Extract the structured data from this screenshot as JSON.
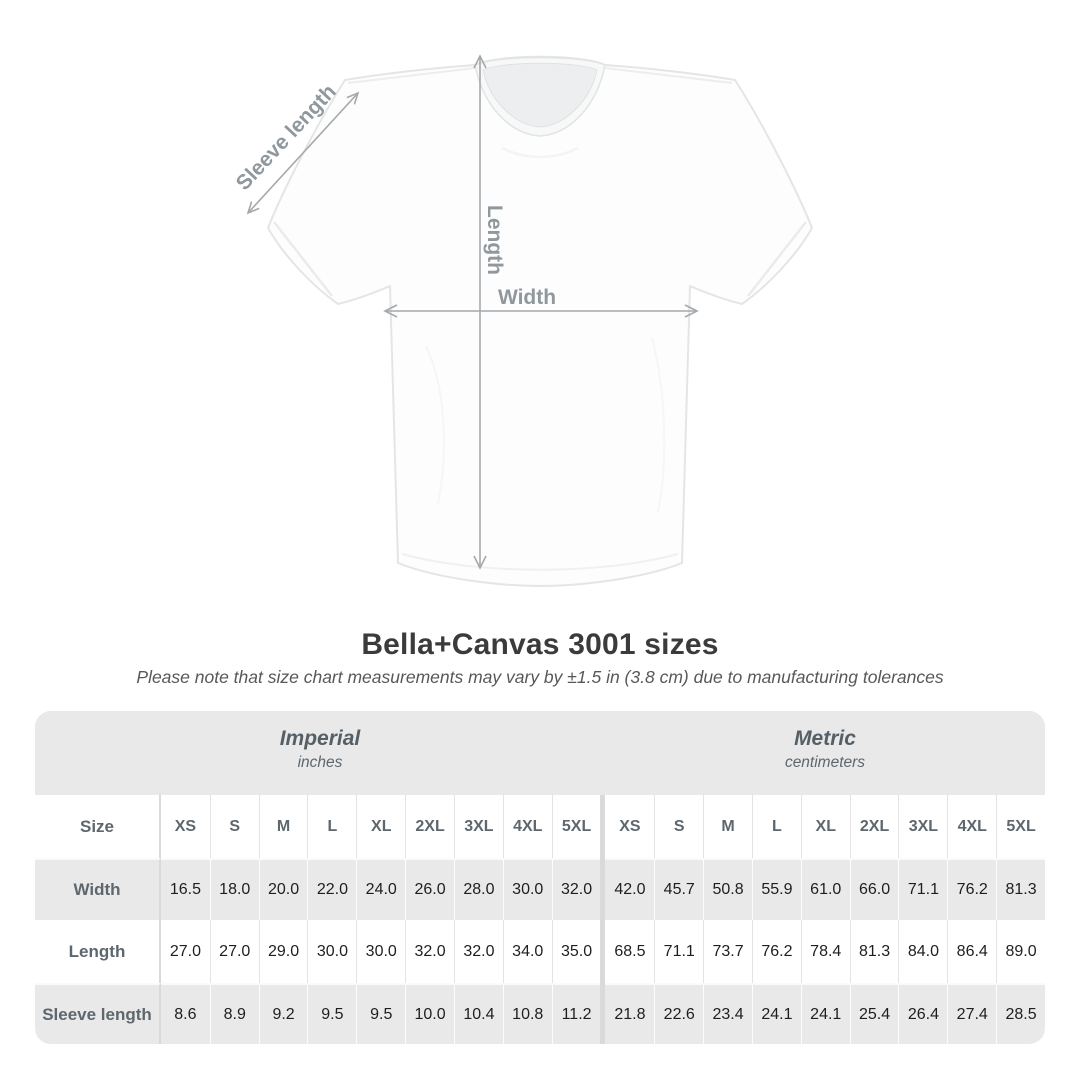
{
  "diagram": {
    "sleeve_label": "Sleeve length",
    "length_label": "Length",
    "width_label": "Width"
  },
  "header": {
    "title": "Bella+Canvas 3001 sizes",
    "subtitle": "Please note that size chart measurements may vary by ±1.5 in (3.8 cm) due to manufacturing tolerances"
  },
  "table": {
    "size_label": "Size",
    "groups": [
      {
        "label": "Imperial",
        "unit": "inches"
      },
      {
        "label": "Metric",
        "unit": "centimeters"
      }
    ],
    "sizes": [
      "XS",
      "S",
      "M",
      "L",
      "XL",
      "2XL",
      "3XL",
      "4XL",
      "5XL"
    ],
    "rows": [
      {
        "label": "Width",
        "imperial": [
          "16.5",
          "18.0",
          "20.0",
          "22.0",
          "24.0",
          "26.0",
          "28.0",
          "30.0",
          "32.0"
        ],
        "metric": [
          "42.0",
          "45.7",
          "50.8",
          "55.9",
          "61.0",
          "66.0",
          "71.1",
          "76.2",
          "81.3"
        ]
      },
      {
        "label": "Length",
        "imperial": [
          "27.0",
          "27.0",
          "29.0",
          "30.0",
          "30.0",
          "32.0",
          "32.0",
          "34.0",
          "35.0"
        ],
        "metric": [
          "68.5",
          "71.1",
          "73.7",
          "76.2",
          "78.4",
          "81.3",
          "84.0",
          "86.4",
          "89.0"
        ]
      },
      {
        "label": "Sleeve length",
        "imperial": [
          "8.6",
          "8.9",
          "9.2",
          "9.5",
          "9.5",
          "10.0",
          "10.4",
          "10.8",
          "11.2"
        ],
        "metric": [
          "21.8",
          "22.6",
          "23.4",
          "24.1",
          "24.1",
          "25.4",
          "26.4",
          "27.4",
          "28.5"
        ]
      }
    ]
  },
  "colors": {
    "table_band_gray": "#e9e9e9",
    "divider_gray": "#dadada",
    "label_text": "#5d676d",
    "value_text": "#1e1e1e",
    "annotation_gray": "#8f989d",
    "arrow_gray": "#a4a9ac"
  },
  "chart_data": {
    "type": "table",
    "title": "Bella+Canvas 3001 sizes",
    "note": "Please note that size chart measurements may vary by ±1.5 in (3.8 cm) due to manufacturing tolerances",
    "column_groups": [
      "Imperial (inches)",
      "Metric (centimeters)"
    ],
    "sizes": [
      "XS",
      "S",
      "M",
      "L",
      "XL",
      "2XL",
      "3XL",
      "4XL",
      "5XL"
    ],
    "rows": [
      {
        "measurement": "Width",
        "imperial_in": [
          16.5,
          18.0,
          20.0,
          22.0,
          24.0,
          26.0,
          28.0,
          30.0,
          32.0
        ],
        "metric_cm": [
          42.0,
          45.7,
          50.8,
          55.9,
          61.0,
          66.0,
          71.1,
          76.2,
          81.3
        ]
      },
      {
        "measurement": "Length",
        "imperial_in": [
          27.0,
          27.0,
          29.0,
          30.0,
          30.0,
          32.0,
          32.0,
          34.0,
          35.0
        ],
        "metric_cm": [
          68.5,
          71.1,
          73.7,
          76.2,
          78.4,
          81.3,
          84.0,
          86.4,
          89.0
        ]
      },
      {
        "measurement": "Sleeve length",
        "imperial_in": [
          8.6,
          8.9,
          9.2,
          9.5,
          9.5,
          10.0,
          10.4,
          10.8,
          11.2
        ],
        "metric_cm": [
          21.8,
          22.6,
          23.4,
          24.1,
          24.1,
          25.4,
          26.4,
          27.4,
          28.5
        ]
      }
    ]
  }
}
